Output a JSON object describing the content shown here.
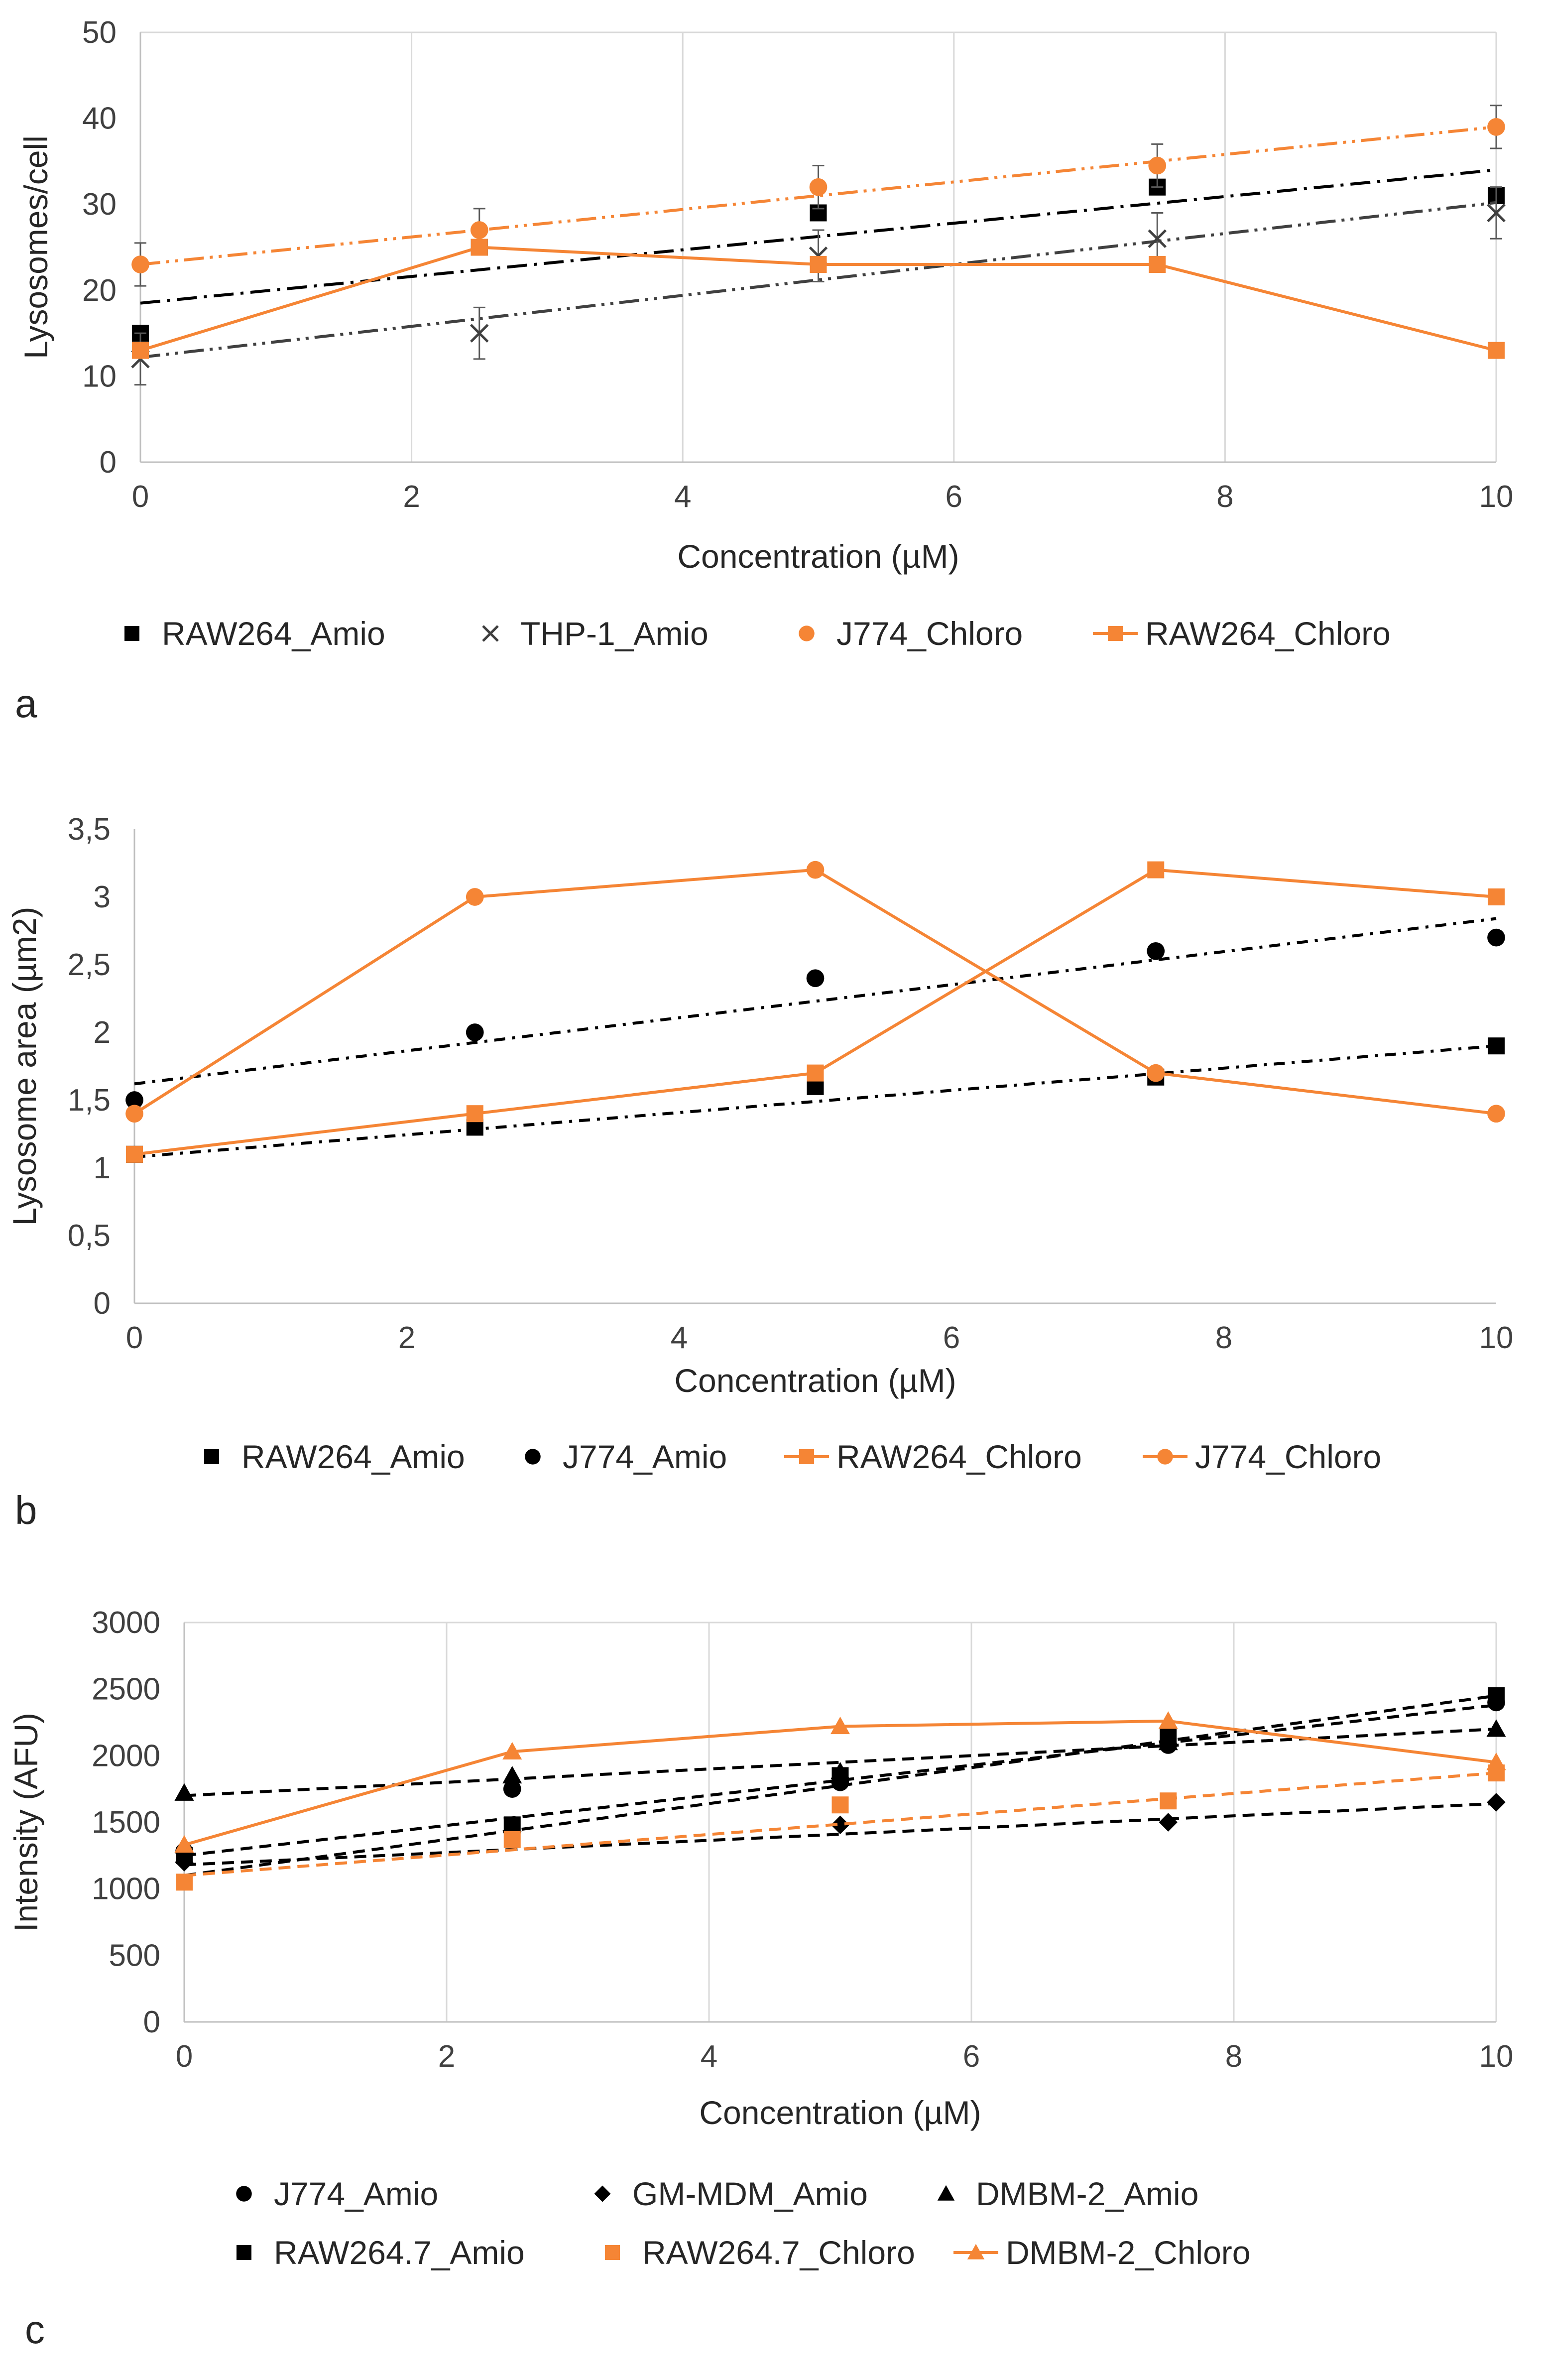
{
  "chart_data": [
    {
      "type": "scatter",
      "panel_label": "a",
      "xlabel": "Concentration (µM)",
      "ylabel": "Lysosomes/cell",
      "xlim": [
        0,
        10
      ],
      "ylim": [
        0,
        50
      ],
      "xticks": [
        0,
        2,
        4,
        6,
        8,
        10
      ],
      "yticks": [
        0,
        10,
        20,
        30,
        40,
        50
      ],
      "xtick_labels": [
        "0",
        "2",
        "4",
        "6",
        "8",
        "10"
      ],
      "ytick_labels": [
        "0",
        "10",
        "20",
        "30",
        "40",
        "50"
      ],
      "grid": "vertical",
      "legend_position": "bottom",
      "series": [
        {
          "name": "RAW264_Amio",
          "color": "#000000",
          "marker": "square",
          "connect": false,
          "x": [
            0,
            2.5,
            5,
            7.5,
            10
          ],
          "y": [
            15,
            25,
            29,
            32,
            31
          ],
          "err": [
            0,
            0,
            0,
            0,
            0
          ],
          "trend": {
            "x": [
              0,
              10
            ],
            "y": [
              18.5,
              34
            ],
            "dash": "long-dash-dot"
          }
        },
        {
          "name": "THP-1_Amio",
          "color": "#404040",
          "marker": "x",
          "connect": false,
          "x": [
            0,
            2.5,
            5,
            7.5,
            10
          ],
          "y": [
            12,
            15,
            24,
            26,
            29
          ],
          "err": [
            3,
            3,
            3,
            3,
            3
          ],
          "trend": {
            "x": [
              0,
              10
            ],
            "y": [
              12.2,
              30.2
            ],
            "dash": "long-dash-dot-dot"
          }
        },
        {
          "name": "J774_Chloro",
          "color": "#f58535",
          "marker": "circle",
          "connect": false,
          "x": [
            0,
            2.5,
            5,
            7.5,
            10
          ],
          "y": [
            23,
            27,
            32,
            34.5,
            39
          ],
          "err": [
            2.5,
            2.5,
            2.5,
            2.5,
            2.5
          ],
          "trend": {
            "x": [
              0,
              10
            ],
            "y": [
              23,
              39
            ],
            "dash": "long-dash-dot-dot"
          }
        },
        {
          "name": "RAW264_Chloro",
          "color": "#f58535",
          "marker": "square",
          "connect": true,
          "x": [
            0,
            2.5,
            5,
            7.5,
            10
          ],
          "y": [
            13,
            25,
            23,
            23,
            13
          ],
          "err": [
            0,
            0,
            0,
            0,
            0
          ]
        }
      ]
    },
    {
      "type": "scatter",
      "panel_label": "b",
      "xlabel": "Concentration (µM)",
      "ylabel": "Lysosome area (µm2)",
      "xlim": [
        0,
        10
      ],
      "ylim": [
        0,
        3.5
      ],
      "xticks": [
        0,
        2,
        4,
        6,
        8,
        10
      ],
      "yticks": [
        0,
        0.5,
        1,
        1.5,
        2,
        2.5,
        3,
        3.5
      ],
      "xtick_labels": [
        "0",
        "2",
        "4",
        "6",
        "8",
        "10"
      ],
      "ytick_labels": [
        "0",
        "0,5",
        "1",
        "1,5",
        "2",
        "2,5",
        "3",
        "3,5"
      ],
      "grid": "none",
      "legend_position": "bottom",
      "series": [
        {
          "name": "RAW264_Amio",
          "color": "#000000",
          "marker": "square",
          "connect": false,
          "x": [
            0,
            2.5,
            5,
            7.5,
            10
          ],
          "y": [
            1.1,
            1.3,
            1.6,
            1.67,
            1.9
          ],
          "trend": {
            "x": [
              0,
              10
            ],
            "y": [
              1.08,
              1.9
            ],
            "dash": "dash-dot"
          }
        },
        {
          "name": "J774_Amio",
          "color": "#000000",
          "marker": "circle",
          "connect": false,
          "x": [
            0,
            2.5,
            5,
            7.5,
            10
          ],
          "y": [
            1.5,
            2.0,
            2.4,
            2.6,
            2.7
          ],
          "trend": {
            "x": [
              0,
              10
            ],
            "y": [
              1.62,
              2.84
            ],
            "dash": "dash-dot"
          }
        },
        {
          "name": "RAW264_Chloro",
          "color": "#f58535",
          "marker": "square",
          "connect": true,
          "x": [
            0,
            2.5,
            5,
            7.5,
            10
          ],
          "y": [
            1.1,
            1.4,
            1.7,
            3.2,
            3.0
          ]
        },
        {
          "name": "J774_Chloro",
          "color": "#f58535",
          "marker": "circle",
          "connect": true,
          "x": [
            0,
            2.5,
            5,
            7.5,
            10
          ],
          "y": [
            1.4,
            3.0,
            3.2,
            1.7,
            1.4
          ]
        }
      ]
    },
    {
      "type": "scatter",
      "panel_label": "c",
      "xlabel": "Concentration (µM)",
      "ylabel": "Intensity (AFU)",
      "xlim": [
        0,
        10
      ],
      "ylim": [
        0,
        3000
      ],
      "xticks": [
        0,
        2,
        4,
        6,
        8,
        10
      ],
      "yticks": [
        0,
        500,
        1000,
        1500,
        2000,
        2500,
        3000
      ],
      "xtick_labels": [
        "0",
        "2",
        "4",
        "6",
        "8",
        "10"
      ],
      "ytick_labels": [
        "0",
        "500",
        "1000",
        "1500",
        "2000",
        "2500",
        "3000"
      ],
      "grid": "vertical",
      "legend_position": "bottom",
      "series": [
        {
          "name": "J774_Amio",
          "color": "#000000",
          "marker": "circle",
          "connect": false,
          "x": [
            0,
            2.5,
            5,
            7.5,
            10
          ],
          "y": [
            1280,
            1750,
            1800,
            2080,
            2400
          ],
          "trend": {
            "x": [
              0,
              10
            ],
            "y": [
              1250,
              2380
            ],
            "dash": "dash"
          }
        },
        {
          "name": "GM-MDM_Amio",
          "color": "#000000",
          "marker": "diamond",
          "connect": false,
          "x": [
            0,
            2.5,
            5,
            7.5,
            10
          ],
          "y": [
            1200,
            1430,
            1480,
            1500,
            1650
          ],
          "trend": {
            "x": [
              0,
              10
            ],
            "y": [
              1180,
              1640
            ],
            "dash": "dash"
          }
        },
        {
          "name": "DMBM-2_Amio",
          "color": "#000000",
          "marker": "triangle",
          "connect": false,
          "x": [
            0,
            2.5,
            5,
            7.5,
            10
          ],
          "y": [
            1720,
            1850,
            1880,
            2100,
            2200
          ],
          "trend": {
            "x": [
              0,
              10
            ],
            "y": [
              1700,
              2200
            ],
            "dash": "dash"
          }
        },
        {
          "name": "RAW264.7_Amio",
          "color": "#000000",
          "marker": "square",
          "connect": false,
          "x": [
            0,
            2.5,
            5,
            7.5,
            10
          ],
          "y": [
            1250,
            1480,
            1850,
            2150,
            2450
          ],
          "trend": {
            "x": [
              0,
              10
            ],
            "y": [
              1100,
              2450
            ],
            "dash": "dash"
          }
        },
        {
          "name": "RAW264.7_Chloro",
          "color": "#f58535",
          "marker": "square",
          "connect": false,
          "x": [
            0,
            2.5,
            5,
            7.5,
            10
          ],
          "y": [
            1050,
            1370,
            1630,
            1660,
            1870
          ],
          "trend": {
            "x": [
              0,
              10
            ],
            "y": [
              1100,
              1870
            ],
            "dash": "dash"
          }
        },
        {
          "name": "DMBM-2_Chloro",
          "color": "#f58535",
          "marker": "triangle",
          "connect": true,
          "x": [
            0,
            2.5,
            5,
            7.5,
            10
          ],
          "y": [
            1330,
            2030,
            2220,
            2260,
            1950
          ]
        }
      ]
    }
  ]
}
